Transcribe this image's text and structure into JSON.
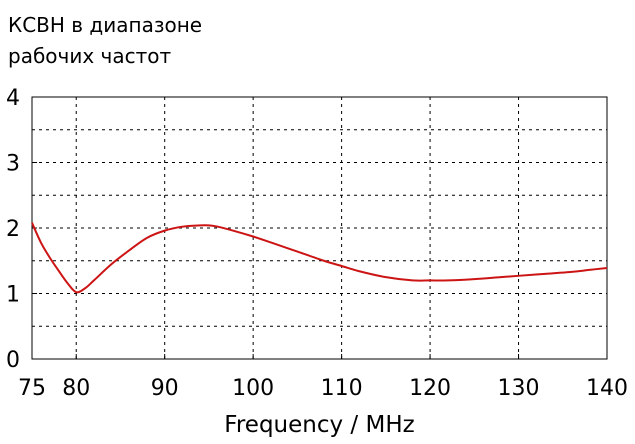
{
  "chart_data": {
    "type": "line",
    "title_lines": [
      "КСВН в диапазоне",
      "рабочих частот"
    ],
    "xlabel": "Frequency / MHz",
    "ylabel": "",
    "xlim": [
      75,
      140
    ],
    "ylim": [
      0,
      4
    ],
    "x_ticks": [
      75,
      80,
      90,
      100,
      110,
      120,
      130,
      140
    ],
    "y_ticks": [
      0,
      1,
      2,
      3,
      4
    ],
    "grid": true,
    "line_color": "#cc1414",
    "series": [
      {
        "x": [
          75,
          76,
          77,
          78,
          79,
          80,
          81,
          82,
          84,
          86,
          88,
          90,
          92,
          94,
          95,
          96,
          98,
          100,
          102,
          105,
          108,
          110,
          112,
          115,
          118,
          120,
          122,
          125,
          128,
          130,
          133,
          136,
          138,
          140
        ],
        "y": [
          2.08,
          1.78,
          1.55,
          1.35,
          1.16,
          1.02,
          1.08,
          1.2,
          1.45,
          1.66,
          1.85,
          1.96,
          2.02,
          2.04,
          2.04,
          2.02,
          1.95,
          1.87,
          1.78,
          1.64,
          1.5,
          1.42,
          1.34,
          1.25,
          1.2,
          1.2,
          1.2,
          1.22,
          1.25,
          1.27,
          1.3,
          1.33,
          1.36,
          1.39
        ]
      }
    ]
  }
}
